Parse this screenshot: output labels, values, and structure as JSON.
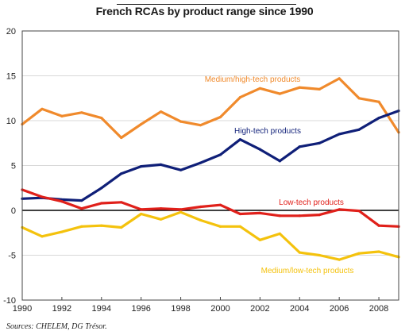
{
  "title": "French RCAs by product range since 1990",
  "source": "Sources: CHELEM, DG Trésor.",
  "chart_data": {
    "type": "line",
    "title": "French RCAs by product range since 1990",
    "xlabel": "",
    "ylabel": "",
    "xlim": [
      1990,
      2009
    ],
    "ylim": [
      -10,
      20
    ],
    "yticks": [
      -10,
      -5,
      0,
      5,
      10,
      15,
      20
    ],
    "xticks": [
      1990,
      1992,
      1994,
      1996,
      1998,
      2000,
      2002,
      2004,
      2006,
      2008
    ],
    "grid": true,
    "x": [
      1990,
      1991,
      1992,
      1993,
      1994,
      1995,
      1996,
      1997,
      1998,
      1999,
      2000,
      2001,
      2002,
      2003,
      2004,
      2005,
      2006,
      2007,
      2008,
      2009
    ],
    "series": [
      {
        "name": "Medium/high-tech products",
        "color": "#f08a2c",
        "values": [
          9.6,
          11.3,
          10.5,
          10.9,
          10.3,
          8.1,
          9.6,
          11.0,
          9.9,
          9.5,
          10.4,
          12.6,
          13.6,
          13.0,
          13.7,
          13.5,
          14.7,
          12.5,
          12.1,
          8.7
        ]
      },
      {
        "name": "High-tech products",
        "color": "#0f1f78",
        "values": [
          1.3,
          1.4,
          1.2,
          1.1,
          2.5,
          4.1,
          4.9,
          5.1,
          4.5,
          5.3,
          6.2,
          7.9,
          6.8,
          5.5,
          7.1,
          7.5,
          8.5,
          9.0,
          10.3,
          11.1
        ]
      },
      {
        "name": "Low-tech products",
        "color": "#e0201a",
        "values": [
          2.3,
          1.5,
          1.0,
          0.2,
          0.8,
          0.9,
          0.1,
          0.2,
          0.1,
          0.4,
          0.6,
          -0.4,
          -0.3,
          -0.6,
          -0.6,
          -0.5,
          0.1,
          -0.05,
          -1.7,
          -1.8
        ]
      },
      {
        "name": "Medium/low-tech products",
        "color": "#f4c20d",
        "values": [
          -1.9,
          -2.9,
          -2.4,
          -1.8,
          -1.7,
          -1.9,
          -0.4,
          -1.0,
          -0.2,
          -1.1,
          -1.8,
          -1.8,
          -3.3,
          -2.6,
          -4.7,
          -5.0,
          -5.5,
          -4.8,
          -4.6,
          -5.2
        ]
      }
    ],
    "annotations": [
      {
        "text": "Medium/high-tech products",
        "color": "#f08a2c"
      },
      {
        "text": "High-tech products",
        "color": "#0f1f78"
      },
      {
        "text": "Low-tech products",
        "color": "#e0201a"
      },
      {
        "text": "Medium/low-tech products",
        "color": "#f4c20d"
      }
    ]
  }
}
